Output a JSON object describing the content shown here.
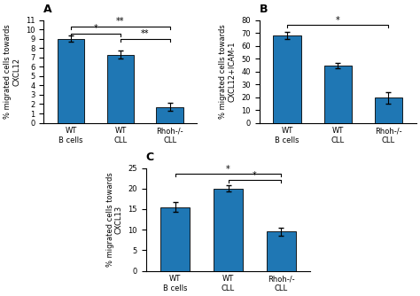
{
  "chart_data": [
    {
      "type": "bar",
      "title": "A",
      "categories": [
        "WT\nB cells",
        "WT\nCLL",
        "Rhoh-/-\nCLL"
      ],
      "values": [
        9.0,
        7.3,
        1.7
      ],
      "errors": [
        0.3,
        0.45,
        0.4
      ],
      "ylabel": "% migrated cells towards\nCXCL12",
      "ylim": [
        0,
        11
      ],
      "yticks": [
        0,
        1,
        2,
        3,
        4,
        5,
        6,
        7,
        8,
        9,
        10,
        11
      ],
      "brackets": [
        {
          "from": "WT\nB cells",
          "to": "WT\nCLL",
          "y": 9.55,
          "label": "*"
        },
        {
          "from": "WT\nB cells",
          "to": "Rhoh-/-\nCLL",
          "y": 10.3,
          "label": "**"
        },
        {
          "from": "WT\nCLL",
          "to": "Rhoh-/-\nCLL",
          "y": 9.0,
          "label": "**"
        }
      ]
    },
    {
      "type": "bar",
      "title": "B",
      "categories": [
        "WT\nB cells",
        "WT\nCLL",
        "Rhoh-/-\nCLL"
      ],
      "values": [
        68.0,
        44.5,
        19.5
      ],
      "errors": [
        3.0,
        1.8,
        4.5
      ],
      "ylabel": "% migrated cells towards\nCXCL12+ICAM-1",
      "ylim": [
        0,
        80
      ],
      "yticks": [
        0,
        10,
        20,
        30,
        40,
        50,
        60,
        70,
        80
      ],
      "brackets": [
        {
          "from": "WT\nB cells",
          "to": "Rhoh-/-\nCLL",
          "y": 76,
          "label": "*"
        }
      ]
    },
    {
      "type": "bar",
      "title": "C",
      "categories": [
        "WT\nB cells",
        "WT\nCLL",
        "Rhoh-/-\nCLL"
      ],
      "values": [
        15.5,
        20.0,
        9.5
      ],
      "errors": [
        1.2,
        0.8,
        1.0
      ],
      "ylabel": "% migrated cells towards\nCXCL13",
      "ylim": [
        0,
        25
      ],
      "yticks": [
        0,
        5,
        10,
        15,
        20,
        25
      ],
      "brackets": [
        {
          "from": "WT\nB cells",
          "to": "Rhoh-/-\nCLL",
          "y": 23.5,
          "label": "*"
        },
        {
          "from": "WT\nCLL",
          "to": "Rhoh-/-\nCLL",
          "y": 22.0,
          "label": "*"
        }
      ]
    }
  ]
}
